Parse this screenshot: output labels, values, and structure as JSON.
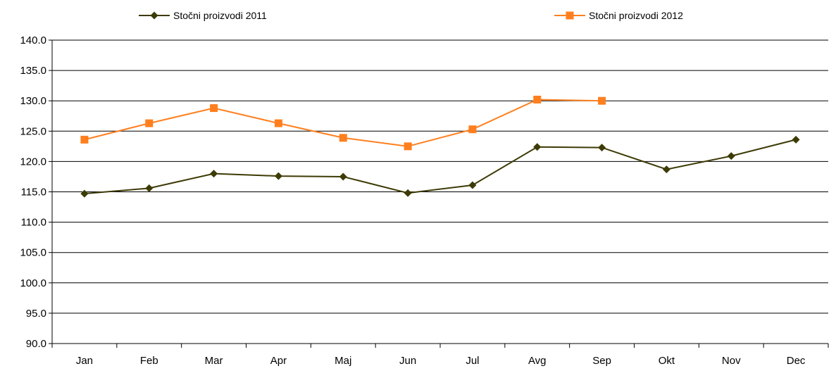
{
  "chart_data": {
    "type": "line",
    "categories": [
      "Jan",
      "Feb",
      "Mar",
      "Apr",
      "Maj",
      "Jun",
      "Jul",
      "Avg",
      "Sep",
      "Okt",
      "Nov",
      "Dec"
    ],
    "series": [
      {
        "name": "Stočni proizvodi  2011",
        "color": "#3d3b05",
        "marker": "diamond",
        "values": [
          114.7,
          115.6,
          118.0,
          117.6,
          117.5,
          114.8,
          116.1,
          122.4,
          122.3,
          118.7,
          120.9,
          123.6
        ]
      },
      {
        "name": "Stočni proizvodi  2012",
        "color": "#ff7f1e",
        "marker": "square",
        "values": [
          123.6,
          126.3,
          128.8,
          126.3,
          123.9,
          122.5,
          125.3,
          130.2,
          130.0,
          null,
          null,
          null
        ]
      }
    ],
    "ylim": [
      90,
      140
    ],
    "yticks": [
      "90.0",
      "95.0",
      "100.0",
      "105.0",
      "110.0",
      "115.0",
      "120.0",
      "125.0",
      "130.0",
      "135.0",
      "140.0"
    ],
    "grid": true,
    "legend": "top"
  }
}
